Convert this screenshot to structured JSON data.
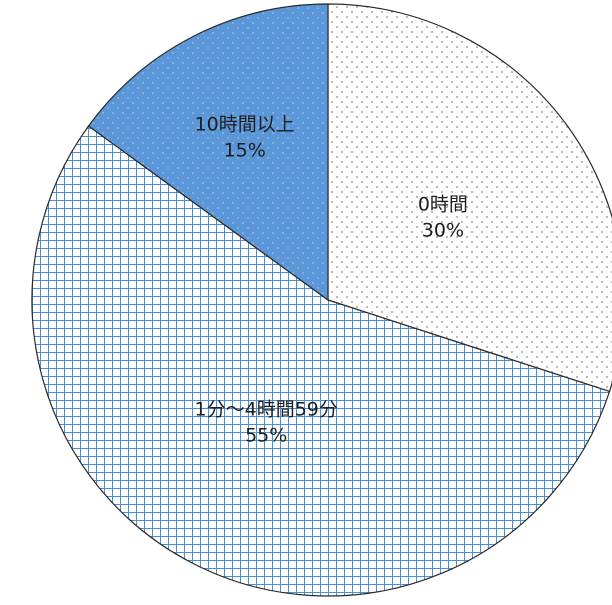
{
  "chart_data": {
    "type": "pie",
    "title": "",
    "start_angle_deg": 0,
    "direction": "clockwise",
    "slices": [
      {
        "label": "0時間",
        "percent_label": "30%",
        "value": 30,
        "pattern": "dots",
        "color": "#ffffff"
      },
      {
        "label": "1分～4時間59分",
        "percent_label": "55%",
        "value": 55,
        "pattern": "grid",
        "color": "#4a8fd0"
      },
      {
        "label": "10時間以上",
        "percent_label": "15%",
        "value": 15,
        "pattern": "solid-dots",
        "color": "#5b96d9"
      }
    ],
    "legend": "none"
  }
}
